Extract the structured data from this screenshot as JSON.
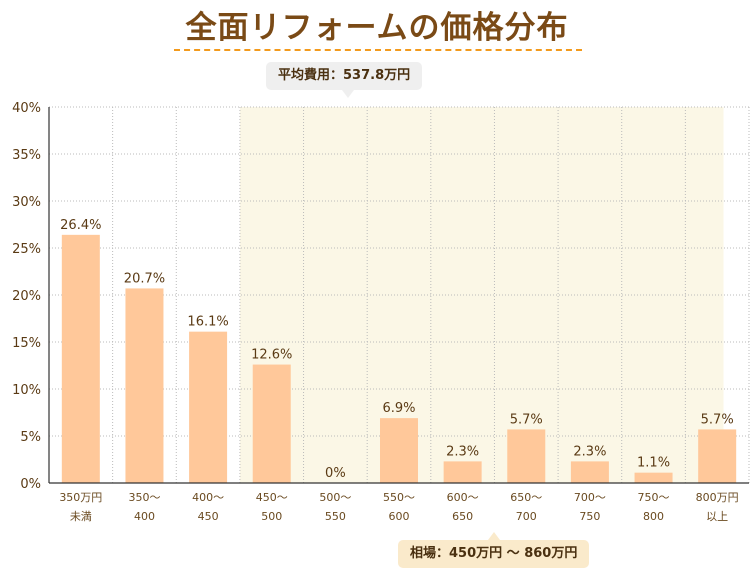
{
  "chart_data": {
    "type": "bar",
    "title": "全面リフォームの価格分布",
    "categories": [
      [
        "350万円",
        "未満"
      ],
      [
        "350〜",
        "400"
      ],
      [
        "400〜",
        "450"
      ],
      [
        "450〜",
        "500"
      ],
      [
        "500〜",
        "550"
      ],
      [
        "550〜",
        "600"
      ],
      [
        "600〜",
        "650"
      ],
      [
        "650〜",
        "700"
      ],
      [
        "700〜",
        "750"
      ],
      [
        "750〜",
        "800"
      ],
      [
        "800万円",
        "以上"
      ]
    ],
    "values": [
      26.4,
      20.7,
      16.1,
      12.6,
      0,
      6.9,
      2.3,
      5.7,
      2.3,
      1.1,
      5.7
    ],
    "data_labels": [
      "26.4%",
      "20.7%",
      "16.1%",
      "12.6%",
      "0%",
      "6.9%",
      "2.3%",
      "5.7%",
      "2.3%",
      "1.1%",
      "5.7%"
    ],
    "ylim": [
      0,
      40
    ],
    "yticks": [
      "0%",
      "5%",
      "10%",
      "15%",
      "20%",
      "25%",
      "30%",
      "35%",
      "40%"
    ],
    "grid": true,
    "highlight_range": "450万円〜860万円",
    "annotations": {
      "average": "平均費用：537.8万円",
      "range": "相場：450万円 〜 860万円"
    },
    "colors": {
      "bar": "#ffc89a",
      "highlight": "#fbf7e6",
      "title": "#7a4a16",
      "accent": "#f39a1c"
    }
  }
}
